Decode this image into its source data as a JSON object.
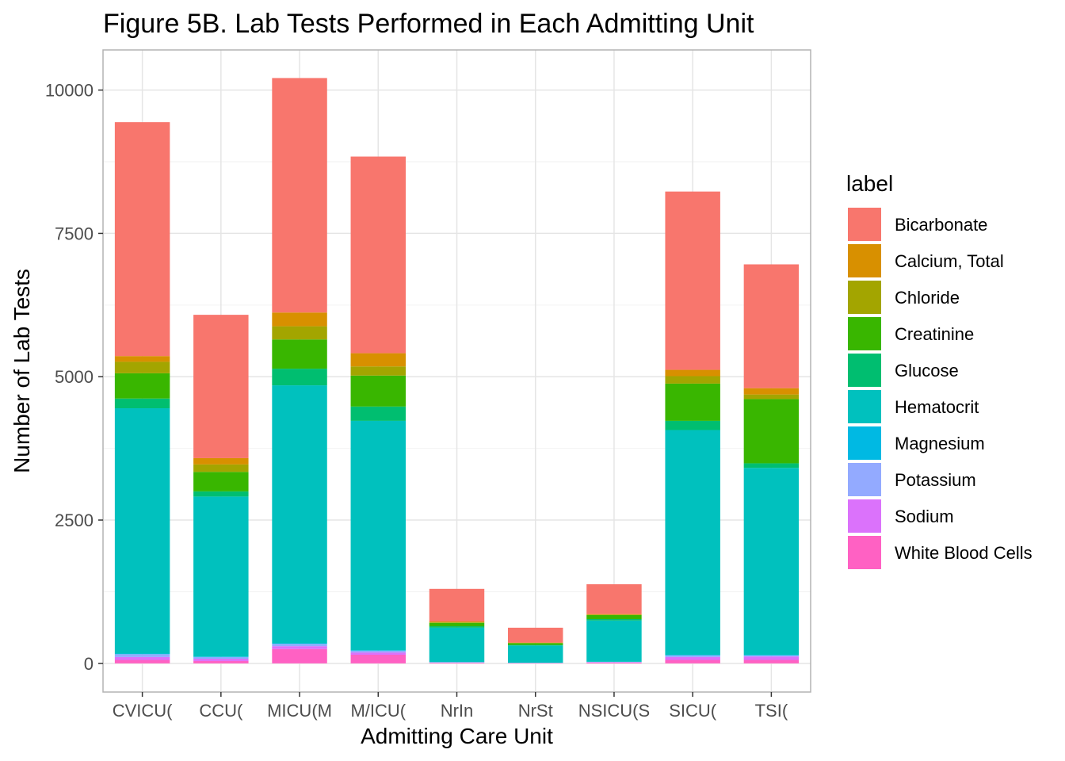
{
  "chart_data": {
    "type": "bar",
    "stacked": true,
    "title": "Figure 5B. Lab Tests Performed in Each Admitting Unit",
    "xlabel": "Admitting Care Unit",
    "ylabel": "Number of Lab Tests",
    "ylim": [
      -500,
      10700
    ],
    "yticks": [
      0,
      2500,
      5000,
      7500,
      10000
    ],
    "grid": true,
    "legend_title": "label",
    "legend_position": "right",
    "categories": [
      "CVICU(",
      "CCU(",
      "MICU(M",
      "M/ICU(",
      "NrIn",
      "NrSt",
      "NSICU(S",
      "SICU(",
      "TSI("
    ],
    "series": [
      {
        "name": "White Blood Cells",
        "color": "#FF61C3",
        "values": [
          60,
          40,
          250,
          150,
          10,
          5,
          15,
          60,
          60
        ]
      },
      {
        "name": "Sodium",
        "color": "#DB72FB",
        "values": [
          50,
          40,
          50,
          40,
          5,
          3,
          5,
          50,
          60
        ]
      },
      {
        "name": "Potassium",
        "color": "#93AAFF",
        "values": [
          50,
          30,
          40,
          30,
          5,
          2,
          5,
          30,
          20
        ]
      },
      {
        "name": "Magnesium",
        "color": "#00B9E3",
        "values": [
          10,
          10,
          10,
          10,
          2,
          2,
          2,
          10,
          10
        ]
      },
      {
        "name": "Hematocrit",
        "color": "#00C1BE",
        "values": [
          4280,
          2790,
          4500,
          4000,
          600,
          300,
          720,
          3920,
          3260
        ]
      },
      {
        "name": "Glucose",
        "color": "#00BE70",
        "values": [
          170,
          90,
          290,
          250,
          25,
          10,
          25,
          160,
          80
        ]
      },
      {
        "name": "Creatinine",
        "color": "#39B600",
        "values": [
          440,
          340,
          510,
          540,
          60,
          30,
          70,
          650,
          1120
        ]
      },
      {
        "name": "Chloride",
        "color": "#A3A500",
        "values": [
          200,
          130,
          230,
          160,
          8,
          5,
          8,
          130,
          80
        ]
      },
      {
        "name": "Calcium, Total",
        "color": "#D89000",
        "values": [
          100,
          110,
          240,
          230,
          15,
          5,
          10,
          110,
          110
        ]
      },
      {
        "name": "Bicarbonate",
        "color": "#F8766D",
        "values": [
          4080,
          2500,
          4090,
          3430,
          570,
          260,
          520,
          3110,
          2160
        ]
      }
    ]
  }
}
